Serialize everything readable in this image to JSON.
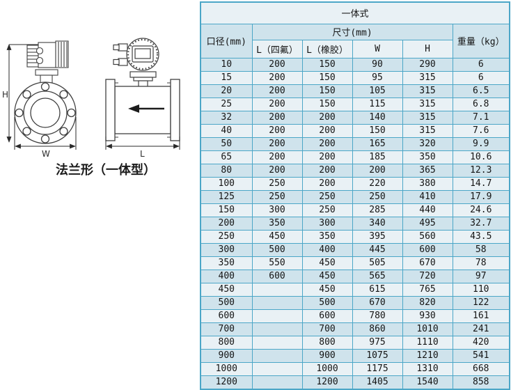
{
  "colors": {
    "table_border": "#4ba6c7",
    "row_dark": "#cfe3ec",
    "row_light": "#e9f1f5",
    "line_art": "#404040",
    "text": "#141414"
  },
  "diagram": {
    "caption": "法兰形（一体型）",
    "dim_h": "H",
    "dim_w": "W",
    "dim_l": "L",
    "flow_arrow": "left"
  },
  "table": {
    "title": "一体式",
    "header": {
      "diameter": "口径(mm)",
      "size_group": "尺寸(mm)",
      "sub": [
        "L（四氟）",
        "L（橡胶）",
        "W",
        "H"
      ],
      "weight": "重量（kg）"
    },
    "rows": [
      [
        "10",
        "200",
        "150",
        "90",
        "290",
        "6"
      ],
      [
        "15",
        "200",
        "150",
        "95",
        "315",
        "6"
      ],
      [
        "20",
        "200",
        "150",
        "105",
        "315",
        "6.5"
      ],
      [
        "25",
        "200",
        "150",
        "115",
        "315",
        "6.8"
      ],
      [
        "32",
        "200",
        "200",
        "140",
        "315",
        "7.1"
      ],
      [
        "40",
        "200",
        "200",
        "150",
        "315",
        "7.6"
      ],
      [
        "50",
        "200",
        "200",
        "165",
        "320",
        "9.9"
      ],
      [
        "65",
        "200",
        "200",
        "185",
        "350",
        "10.6"
      ],
      [
        "80",
        "200",
        "200",
        "200",
        "365",
        "12.3"
      ],
      [
        "100",
        "250",
        "200",
        "220",
        "380",
        "14.7"
      ],
      [
        "125",
        "250",
        "250",
        "250",
        "410",
        "17.9"
      ],
      [
        "150",
        "300",
        "250",
        "285",
        "440",
        "24.6"
      ],
      [
        "200",
        "350",
        "300",
        "340",
        "495",
        "32.7"
      ],
      [
        "250",
        "450",
        "350",
        "395",
        "560",
        "43.5"
      ],
      [
        "300",
        "500",
        "400",
        "445",
        "600",
        "58"
      ],
      [
        "350",
        "550",
        "450",
        "505",
        "670",
        "78"
      ],
      [
        "400",
        "600",
        "450",
        "565",
        "720",
        "97"
      ],
      [
        "450",
        "",
        "450",
        "615",
        "765",
        "110"
      ],
      [
        "500",
        "",
        "500",
        "670",
        "820",
        "122"
      ],
      [
        "600",
        "",
        "600",
        "780",
        "930",
        "161"
      ],
      [
        "700",
        "",
        "700",
        "860",
        "1010",
        "241"
      ],
      [
        "800",
        "",
        "800",
        "975",
        "1110",
        "420"
      ],
      [
        "900",
        "",
        "900",
        "1075",
        "1210",
        "541"
      ],
      [
        "1000",
        "",
        "1000",
        "1175",
        "1310",
        "668"
      ],
      [
        "1200",
        "",
        "1200",
        "1405",
        "1540",
        "858"
      ]
    ]
  }
}
